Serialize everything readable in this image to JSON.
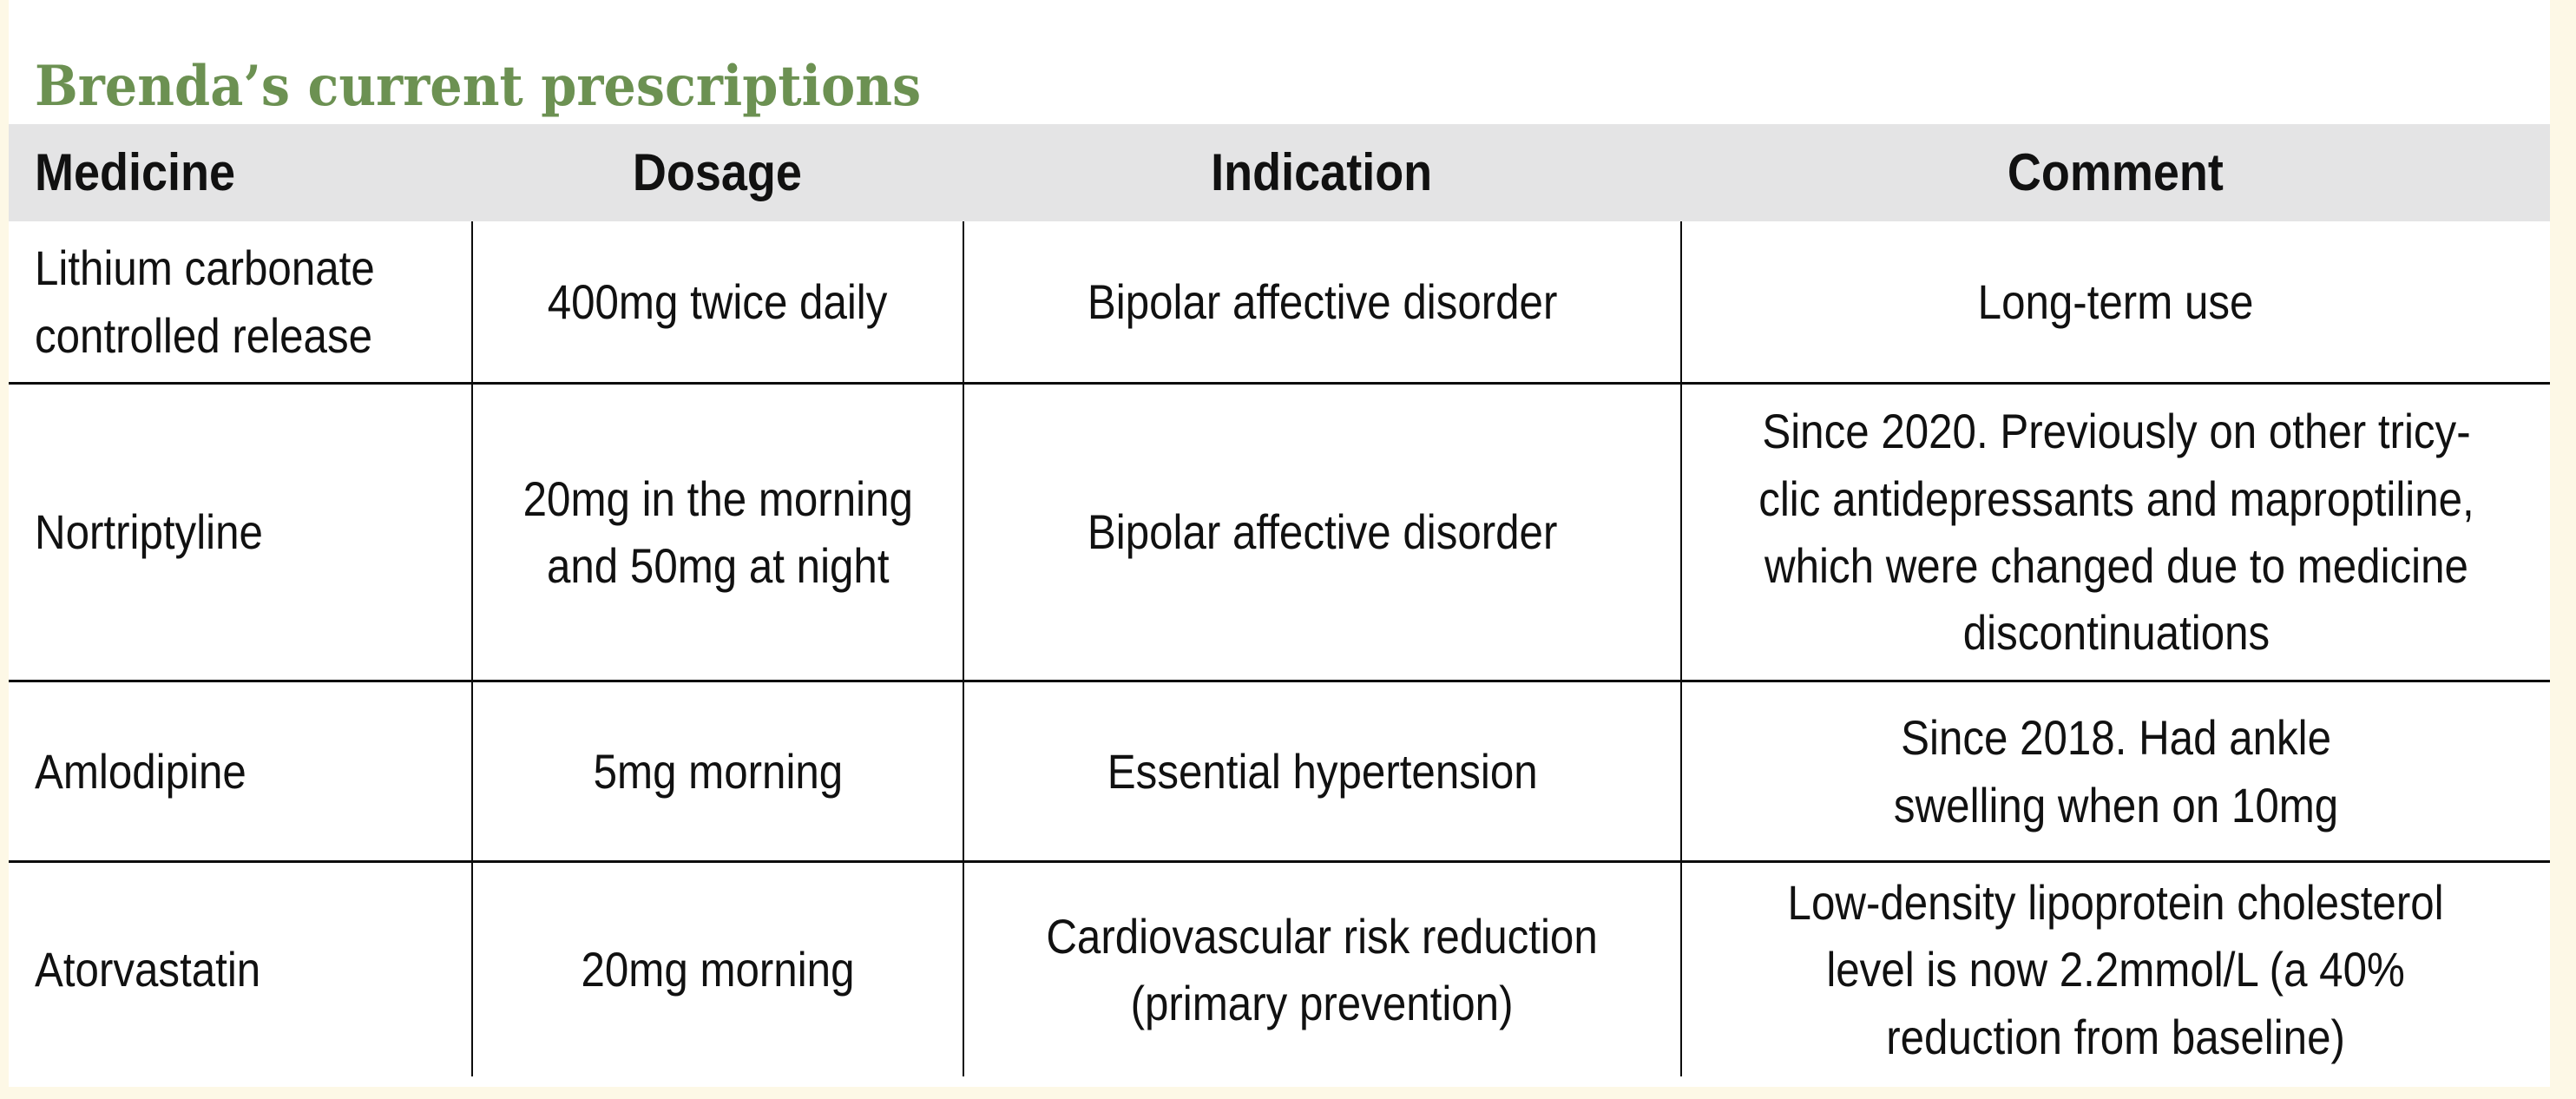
{
  "page": {
    "background_color": "#fdf8e6",
    "panel_color": "#ffffff"
  },
  "title": {
    "text": "Brenda’s current prescriptions",
    "color": "#6c9152"
  },
  "table": {
    "header_background": "#e4e4e5",
    "rule_color": "#0c0c0c",
    "columns": [
      "Medicine",
      "Dosage",
      "Indication",
      "Comment"
    ],
    "rows": [
      {
        "medicine": "Lithium carbonate\ncontrolled release",
        "dosage": "400mg twice daily",
        "indication": "Bipolar affective disorder",
        "comment": "Long-term use"
      },
      {
        "medicine": "Nortriptyline",
        "dosage": "20mg in the morning\nand 50mg at night",
        "indication": "Bipolar affective disorder",
        "comment": "Since 2020. Previously on other tricy-\nclic antidepressants and maproptiline,\nwhich were changed due to medicine\ndiscontinuations"
      },
      {
        "medicine": "Amlodipine",
        "dosage": "5mg morning",
        "indication": "Essential hypertension",
        "comment": "Since 2018. Had ankle\nswelling when on 10mg"
      },
      {
        "medicine": "Atorvastatin",
        "dosage": "20mg morning",
        "indication": "Cardiovascular risk reduction\n(primary prevention)",
        "comment": "Low-density lipoprotein cholesterol\nlevel is now 2.2mmol/L (a 40%\nreduction from baseline)"
      }
    ]
  }
}
